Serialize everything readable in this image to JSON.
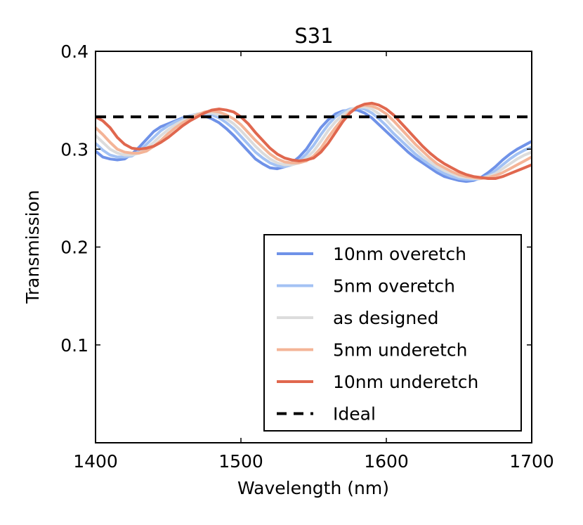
{
  "chart_data": {
    "type": "line",
    "title": "S31",
    "xlabel": "Wavelength (nm)",
    "ylabel": "Transmission",
    "xlim": [
      1400,
      1700
    ],
    "ylim": [
      0.0,
      0.4
    ],
    "xticks": [
      1400,
      1500,
      1600,
      1700
    ],
    "xtick_labels": [
      "1400",
      "1500",
      "1600",
      "1700"
    ],
    "yticks": [
      0.1,
      0.2,
      0.3,
      0.4
    ],
    "ytick_labels": [
      "0.1",
      "0.2",
      "0.3",
      "0.4"
    ],
    "grid": false,
    "legend_position": "lower-right",
    "series": [
      {
        "name": "10nm overetch",
        "color": "#6f92e8",
        "style": "solid",
        "x": [
          1400,
          1405,
          1410,
          1415,
          1420,
          1425,
          1430,
          1435,
          1440,
          1445,
          1450,
          1455,
          1460,
          1465,
          1470,
          1475,
          1480,
          1485,
          1490,
          1495,
          1500,
          1505,
          1510,
          1515,
          1520,
          1525,
          1530,
          1535,
          1540,
          1545,
          1550,
          1555,
          1560,
          1565,
          1570,
          1575,
          1580,
          1585,
          1590,
          1595,
          1600,
          1605,
          1610,
          1615,
          1620,
          1625,
          1630,
          1635,
          1640,
          1645,
          1650,
          1655,
          1660,
          1665,
          1670,
          1675,
          1680,
          1685,
          1690,
          1695,
          1700
        ],
        "y": [
          0.298,
          0.292,
          0.29,
          0.289,
          0.29,
          0.295,
          0.302,
          0.31,
          0.318,
          0.323,
          0.326,
          0.329,
          0.332,
          0.334,
          0.335,
          0.334,
          0.331,
          0.327,
          0.321,
          0.314,
          0.306,
          0.298,
          0.29,
          0.285,
          0.281,
          0.28,
          0.282,
          0.286,
          0.292,
          0.3,
          0.311,
          0.322,
          0.33,
          0.336,
          0.339,
          0.34,
          0.34,
          0.337,
          0.332,
          0.325,
          0.318,
          0.311,
          0.304,
          0.297,
          0.291,
          0.286,
          0.281,
          0.276,
          0.272,
          0.27,
          0.268,
          0.267,
          0.268,
          0.271,
          0.276,
          0.282,
          0.289,
          0.295,
          0.3,
          0.304,
          0.308
        ]
      },
      {
        "name": "5nm overetch",
        "color": "#a3c2f4",
        "style": "solid",
        "x": [
          1400,
          1405,
          1410,
          1415,
          1420,
          1425,
          1430,
          1435,
          1440,
          1445,
          1450,
          1455,
          1460,
          1465,
          1470,
          1475,
          1480,
          1485,
          1490,
          1495,
          1500,
          1505,
          1510,
          1515,
          1520,
          1525,
          1530,
          1535,
          1540,
          1545,
          1550,
          1555,
          1560,
          1565,
          1570,
          1575,
          1580,
          1585,
          1590,
          1595,
          1600,
          1605,
          1610,
          1615,
          1620,
          1625,
          1630,
          1635,
          1640,
          1645,
          1650,
          1655,
          1660,
          1665,
          1670,
          1675,
          1680,
          1685,
          1690,
          1695,
          1700
        ],
        "y": [
          0.306,
          0.299,
          0.294,
          0.292,
          0.292,
          0.293,
          0.298,
          0.305,
          0.312,
          0.319,
          0.324,
          0.328,
          0.331,
          0.334,
          0.336,
          0.336,
          0.335,
          0.332,
          0.327,
          0.321,
          0.313,
          0.305,
          0.297,
          0.291,
          0.286,
          0.283,
          0.282,
          0.284,
          0.288,
          0.295,
          0.304,
          0.315,
          0.325,
          0.333,
          0.338,
          0.341,
          0.342,
          0.341,
          0.337,
          0.331,
          0.324,
          0.316,
          0.309,
          0.302,
          0.295,
          0.289,
          0.284,
          0.279,
          0.275,
          0.272,
          0.27,
          0.269,
          0.269,
          0.27,
          0.273,
          0.278,
          0.284,
          0.29,
          0.295,
          0.299,
          0.302
        ]
      },
      {
        "name": "as designed",
        "color": "#dcdcdc",
        "style": "solid",
        "x": [
          1400,
          1405,
          1410,
          1415,
          1420,
          1425,
          1430,
          1435,
          1440,
          1445,
          1450,
          1455,
          1460,
          1465,
          1470,
          1475,
          1480,
          1485,
          1490,
          1495,
          1500,
          1505,
          1510,
          1515,
          1520,
          1525,
          1530,
          1535,
          1540,
          1545,
          1550,
          1555,
          1560,
          1565,
          1570,
          1575,
          1580,
          1585,
          1590,
          1595,
          1600,
          1605,
          1610,
          1615,
          1620,
          1625,
          1630,
          1635,
          1640,
          1645,
          1650,
          1655,
          1660,
          1665,
          1670,
          1675,
          1680,
          1685,
          1690,
          1695,
          1700
        ],
        "y": [
          0.314,
          0.307,
          0.3,
          0.296,
          0.294,
          0.294,
          0.296,
          0.301,
          0.307,
          0.314,
          0.32,
          0.325,
          0.329,
          0.333,
          0.336,
          0.337,
          0.337,
          0.335,
          0.331,
          0.326,
          0.319,
          0.311,
          0.303,
          0.296,
          0.29,
          0.286,
          0.284,
          0.284,
          0.286,
          0.291,
          0.298,
          0.308,
          0.319,
          0.328,
          0.335,
          0.34,
          0.343,
          0.343,
          0.341,
          0.336,
          0.33,
          0.322,
          0.315,
          0.307,
          0.3,
          0.293,
          0.287,
          0.282,
          0.278,
          0.275,
          0.272,
          0.271,
          0.27,
          0.27,
          0.272,
          0.275,
          0.28,
          0.285,
          0.29,
          0.294,
          0.297
        ]
      },
      {
        "name": "5nm underetch",
        "color": "#f4b497",
        "style": "solid",
        "x": [
          1400,
          1405,
          1410,
          1415,
          1420,
          1425,
          1430,
          1435,
          1440,
          1445,
          1450,
          1455,
          1460,
          1465,
          1470,
          1475,
          1480,
          1485,
          1490,
          1495,
          1500,
          1505,
          1510,
          1515,
          1520,
          1525,
          1530,
          1535,
          1540,
          1545,
          1550,
          1555,
          1560,
          1565,
          1570,
          1575,
          1580,
          1585,
          1590,
          1595,
          1600,
          1605,
          1610,
          1615,
          1620,
          1625,
          1630,
          1635,
          1640,
          1645,
          1650,
          1655,
          1660,
          1665,
          1670,
          1675,
          1680,
          1685,
          1690,
          1695,
          1700
        ],
        "y": [
          0.322,
          0.315,
          0.307,
          0.3,
          0.297,
          0.296,
          0.296,
          0.298,
          0.303,
          0.309,
          0.316,
          0.322,
          0.327,
          0.331,
          0.335,
          0.338,
          0.339,
          0.338,
          0.335,
          0.331,
          0.325,
          0.317,
          0.309,
          0.302,
          0.295,
          0.29,
          0.287,
          0.286,
          0.286,
          0.288,
          0.293,
          0.301,
          0.312,
          0.322,
          0.331,
          0.338,
          0.343,
          0.345,
          0.344,
          0.341,
          0.336,
          0.329,
          0.321,
          0.313,
          0.305,
          0.298,
          0.291,
          0.285,
          0.281,
          0.277,
          0.274,
          0.272,
          0.271,
          0.27,
          0.271,
          0.273,
          0.276,
          0.28,
          0.284,
          0.288,
          0.292
        ]
      },
      {
        "name": "10nm underetch",
        "color": "#e0674e",
        "style": "solid",
        "x": [
          1400,
          1405,
          1410,
          1415,
          1420,
          1425,
          1430,
          1435,
          1440,
          1445,
          1450,
          1455,
          1460,
          1465,
          1470,
          1475,
          1480,
          1485,
          1490,
          1495,
          1500,
          1505,
          1510,
          1515,
          1520,
          1525,
          1530,
          1535,
          1540,
          1545,
          1550,
          1555,
          1560,
          1565,
          1570,
          1575,
          1580,
          1585,
          1590,
          1595,
          1600,
          1605,
          1610,
          1615,
          1620,
          1625,
          1630,
          1635,
          1640,
          1645,
          1650,
          1655,
          1660,
          1665,
          1670,
          1675,
          1680,
          1685,
          1690,
          1695,
          1700
        ],
        "y": [
          0.333,
          0.329,
          0.322,
          0.312,
          0.305,
          0.301,
          0.3,
          0.301,
          0.303,
          0.307,
          0.312,
          0.318,
          0.324,
          0.329,
          0.333,
          0.337,
          0.34,
          0.341,
          0.34,
          0.338,
          0.333,
          0.326,
          0.317,
          0.309,
          0.301,
          0.295,
          0.291,
          0.289,
          0.288,
          0.289,
          0.291,
          0.297,
          0.306,
          0.317,
          0.328,
          0.337,
          0.343,
          0.346,
          0.347,
          0.345,
          0.341,
          0.335,
          0.327,
          0.319,
          0.311,
          0.303,
          0.296,
          0.29,
          0.285,
          0.281,
          0.277,
          0.274,
          0.272,
          0.271,
          0.27,
          0.27,
          0.272,
          0.275,
          0.278,
          0.281,
          0.284
        ]
      },
      {
        "name": "Ideal",
        "color": "#000000",
        "style": "dashed",
        "x": [
          1400,
          1700
        ],
        "y": [
          0.333,
          0.333
        ]
      }
    ]
  }
}
